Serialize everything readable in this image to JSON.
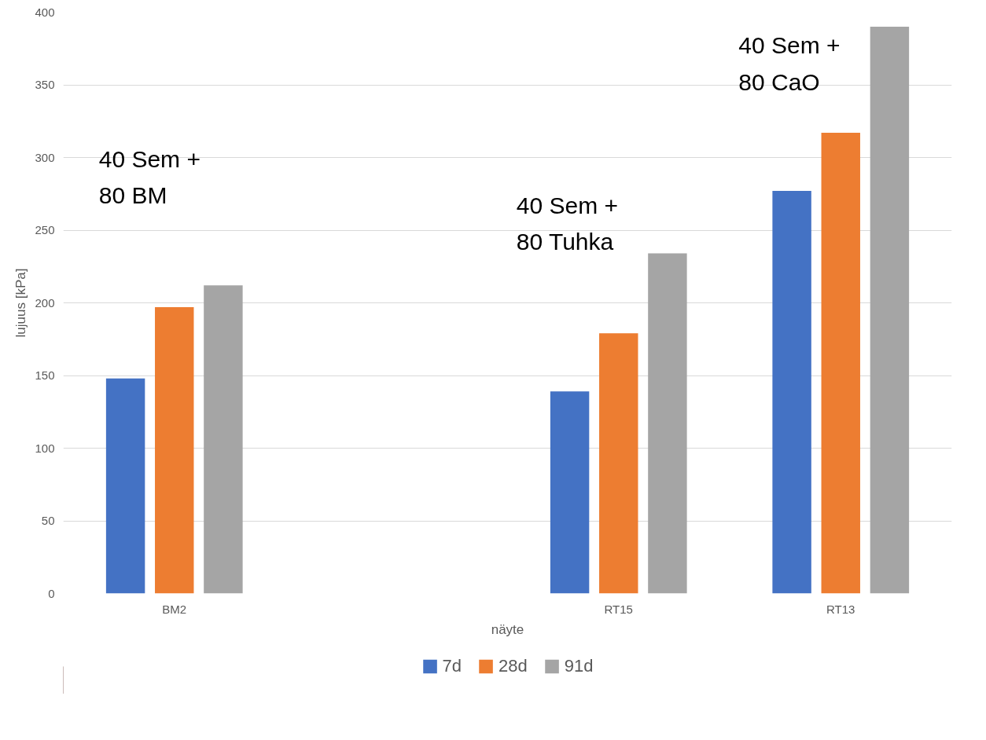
{
  "chart_data": {
    "type": "bar",
    "xlabel": "näyte",
    "ylabel": "lujuus [kPa]",
    "categories": [
      "BM2",
      null,
      "RT15",
      "RT13"
    ],
    "series": [
      {
        "name": "7d",
        "color": "#4472c4",
        "values": [
          148,
          null,
          139,
          277
        ]
      },
      {
        "name": "28d",
        "color": "#ed7d31",
        "values": [
          197,
          null,
          179,
          317
        ]
      },
      {
        "name": "91d",
        "color": "#a5a5a5",
        "values": [
          212,
          null,
          234,
          390
        ]
      }
    ],
    "ylim": [
      0,
      400
    ],
    "yticks": [
      0,
      50,
      100,
      150,
      200,
      250,
      300,
      350,
      400
    ],
    "grid": "y",
    "legend": "bottom",
    "annotations": [
      "40 Sem +\n80 BM",
      "40 Sem +\n80 Tuhka",
      "40 Sem +\n80 CaO"
    ]
  }
}
